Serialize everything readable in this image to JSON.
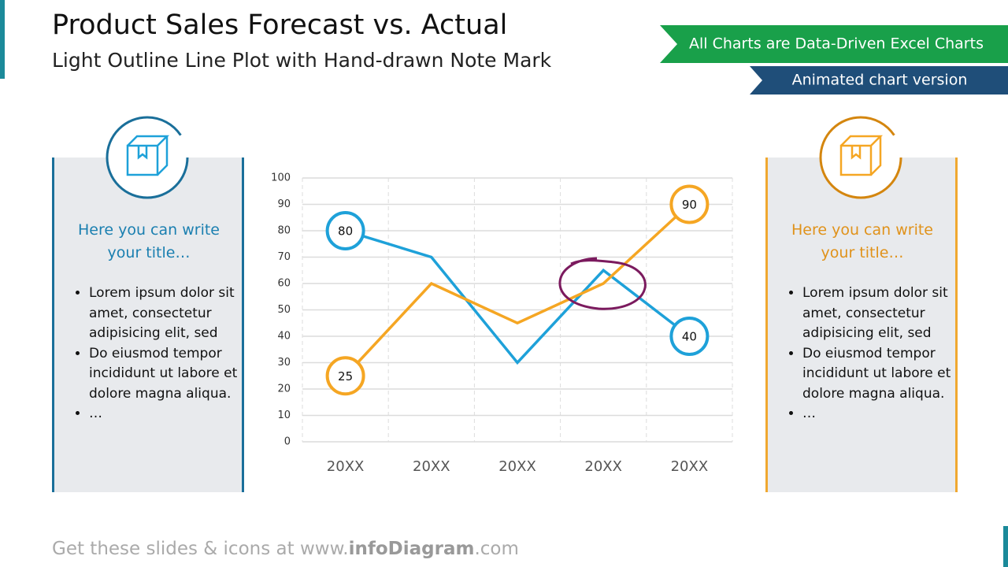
{
  "header": {
    "title": "Product Sales Forecast vs. Actual",
    "subtitle": "Light Outline Line Plot with Hand-drawn Note Mark"
  },
  "badges": [
    "All Charts are Data-Driven Excel Charts",
    "Animated chart version"
  ],
  "panels": [
    {
      "title": "Here you can write your title…",
      "bullets": [
        "Lorem ipsum dolor sit amet, consectetur adipisicing elit, sed",
        "Do eiusmod tempor incididunt ut labore et dolore magna aliqua.",
        "…"
      ]
    },
    {
      "title": "Here you can write your title…",
      "bullets": [
        "Lorem ipsum dolor sit amet, consectetur adipisicing elit, sed",
        "Do eiusmod tempor incididunt ut labore et dolore magna aliqua.",
        "…"
      ]
    }
  ],
  "chart_data": {
    "type": "line",
    "categories": [
      "20XX",
      "20XX",
      "20XX",
      "20XX",
      "20XX"
    ],
    "series": [
      {
        "color": "#1ea1d9",
        "values": [
          80,
          70,
          30,
          65,
          40
        ]
      },
      {
        "color": "#f5a623",
        "values": [
          25,
          60,
          45,
          60,
          90
        ]
      }
    ],
    "ylim": [
      0,
      100
    ],
    "yticks": [
      0,
      10,
      20,
      30,
      40,
      50,
      60,
      70,
      80,
      90,
      100
    ],
    "grid": true
  },
  "footer": {
    "prefix": "Get these slides & icons at www.",
    "brand": "infoDiagram",
    "suffix": ".com"
  }
}
